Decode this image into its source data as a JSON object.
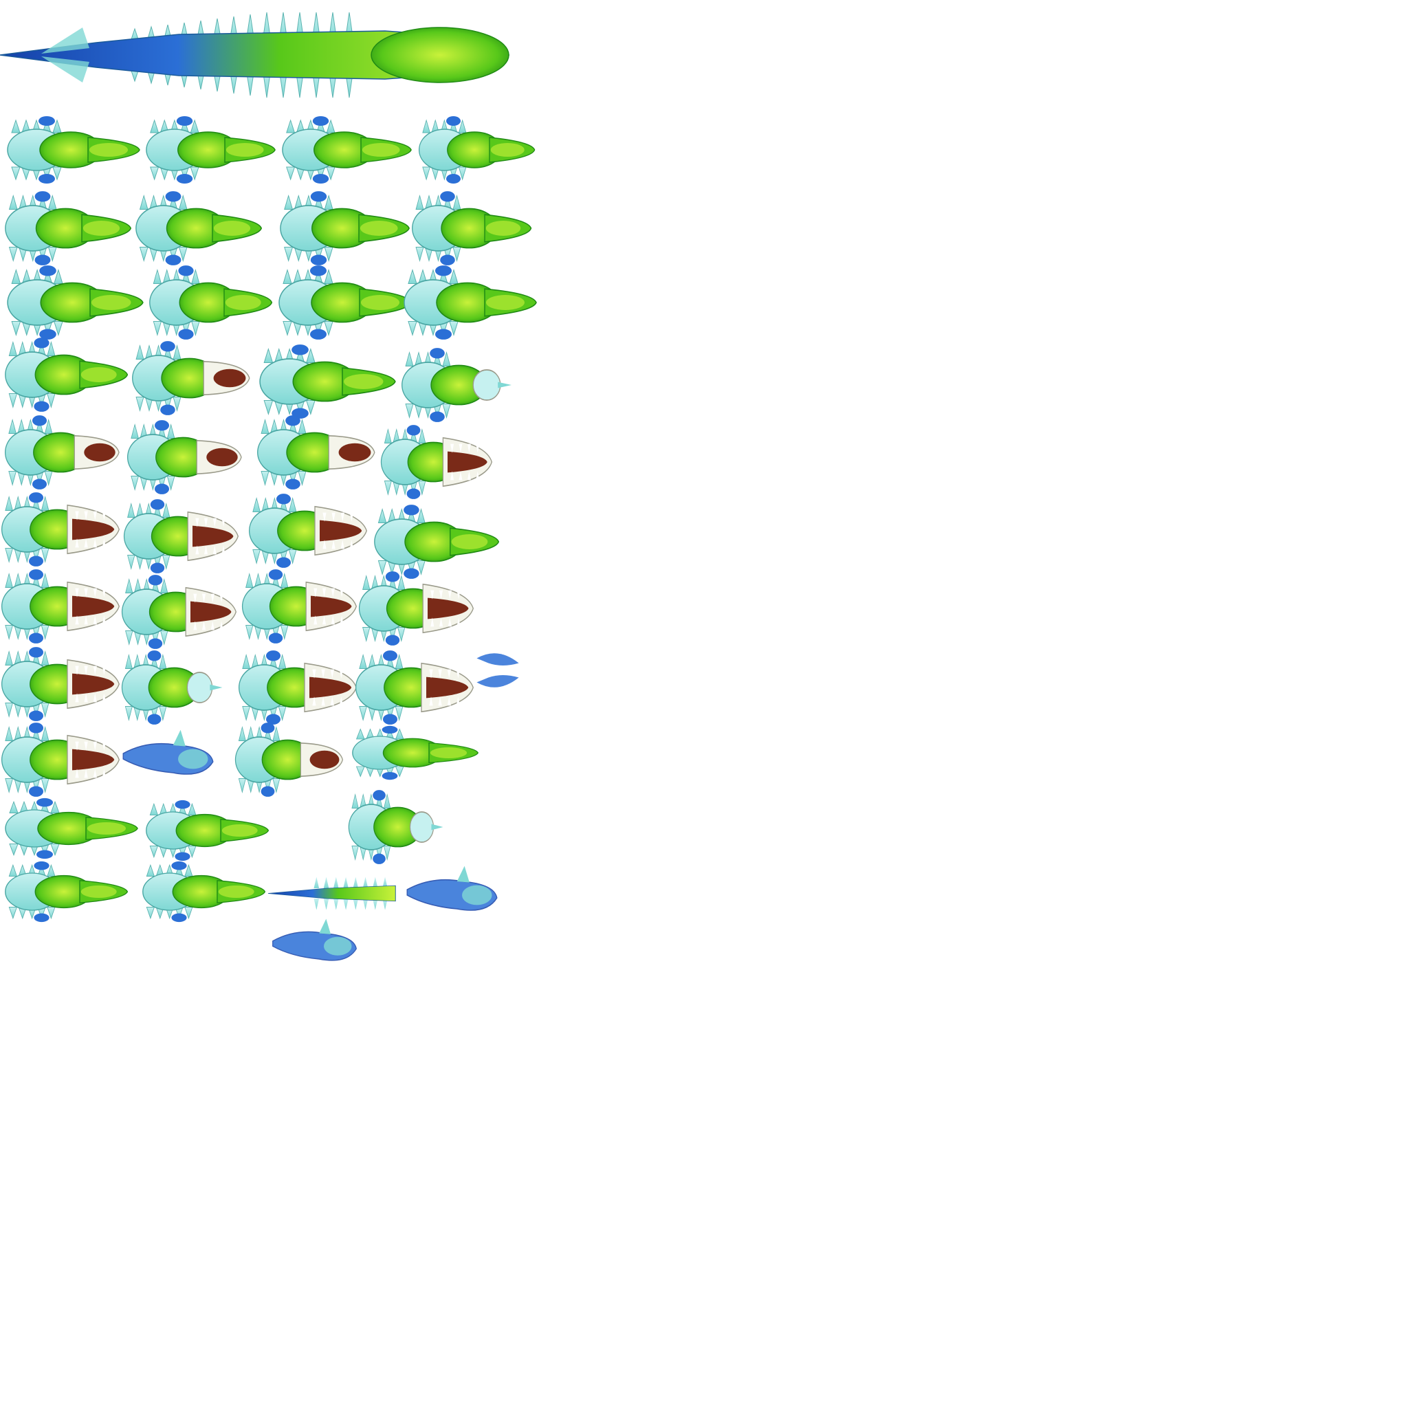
{
  "sheet": {
    "background": "#ffffff",
    "palette": {
      "green_light": "#c9f23a",
      "green": "#58c81a",
      "green_dark": "#1f8a14",
      "aqua": "#7fd8d4",
      "aqua_light": "#c6f1f0",
      "blue": "#2b6fd6",
      "blue_dark": "#1541a8",
      "mouth": "#7a2a18",
      "teeth": "#f4f4ea"
    },
    "frames": [
      {
        "kind": "full"
      },
      {
        "kind": "closed"
      },
      {
        "kind": "closed"
      },
      {
        "kind": "closed"
      },
      {
        "kind": "closed"
      },
      {
        "kind": "closed"
      },
      {
        "kind": "closed"
      },
      {
        "kind": "closed"
      },
      {
        "kind": "closed"
      },
      {
        "kind": "closed"
      },
      {
        "kind": "closed"
      },
      {
        "kind": "closed"
      },
      {
        "kind": "closed"
      },
      {
        "kind": "closed"
      },
      {
        "kind": "open-small"
      },
      {
        "kind": "closed"
      },
      {
        "kind": "front"
      },
      {
        "kind": "open-small"
      },
      {
        "kind": "open-small"
      },
      {
        "kind": "open-small"
      },
      {
        "kind": "open-big"
      },
      {
        "kind": "open-big"
      },
      {
        "kind": "open-big"
      },
      {
        "kind": "open-big"
      },
      {
        "kind": "closed"
      },
      {
        "kind": "open-big"
      },
      {
        "kind": "open-big"
      },
      {
        "kind": "open-big"
      },
      {
        "kind": "open-big"
      },
      {
        "kind": "open-big"
      },
      {
        "kind": "front"
      },
      {
        "kind": "open-big"
      },
      {
        "kind": "open-big"
      },
      {
        "kind": "claws"
      },
      {
        "kind": "open-big"
      },
      {
        "kind": "blue-limb"
      },
      {
        "kind": "open-small"
      },
      {
        "kind": "closed"
      },
      {
        "kind": "closed"
      },
      {
        "kind": "closed"
      },
      {
        "kind": "front"
      },
      {
        "kind": "closed"
      },
      {
        "kind": "closed"
      },
      {
        "kind": "tail"
      },
      {
        "kind": "blue-limb"
      },
      {
        "kind": "blue-limb"
      }
    ]
  }
}
